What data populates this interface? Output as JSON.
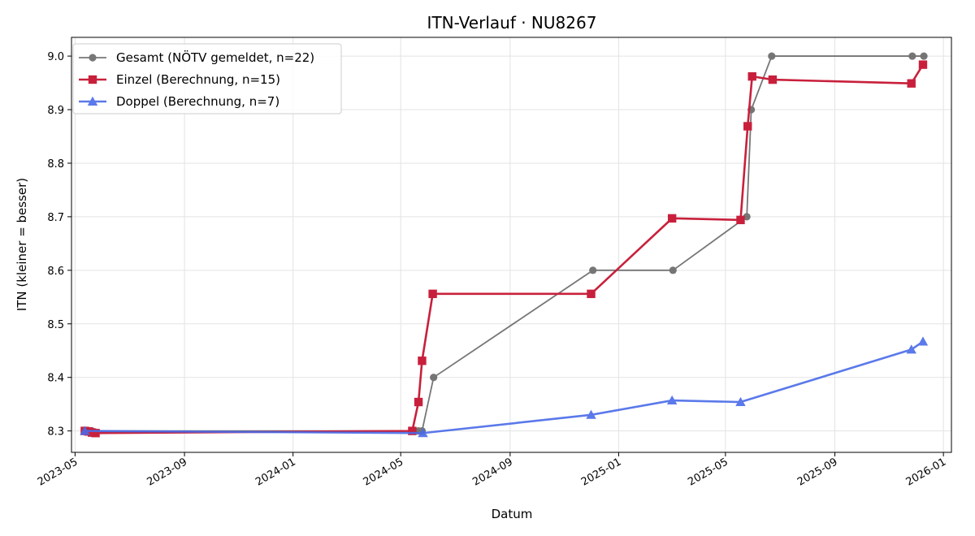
{
  "chart_data": {
    "type": "line",
    "title": "ITN-Verlauf · NU8267",
    "xlabel": "Datum",
    "ylabel": "ITN  (kleiner = besser)",
    "x_axis": "date",
    "xlim": [
      "2023-04-27",
      "2026-01-10"
    ],
    "ylim": [
      8.26,
      9.035
    ],
    "x_ticks": [
      "2023-05-01",
      "2023-09-01",
      "2024-01-01",
      "2024-05-01",
      "2024-09-01",
      "2025-01-01",
      "2025-05-01",
      "2025-09-01",
      "2026-01-01"
    ],
    "x_tick_labels": [
      "2023-05",
      "2023-09",
      "2024-01",
      "2024-05",
      "2024-09",
      "2025-01",
      "2025-05",
      "2025-09",
      "2026-01"
    ],
    "y_ticks": [
      8.3,
      8.4,
      8.5,
      8.6,
      8.7,
      8.8,
      8.9,
      9.0
    ],
    "y_tick_labels": [
      "8.3",
      "8.4",
      "8.5",
      "8.6",
      "8.7",
      "8.8",
      "8.9",
      "9.0"
    ],
    "grid": true,
    "legend_position": "top-left",
    "series": [
      {
        "name": "Gesamt (NÖTV gemeldet, n=22)",
        "color": "#555555",
        "marker": "circle",
        "points": [
          [
            "2023-05-12",
            8.3
          ],
          [
            "2023-05-14",
            8.3
          ],
          [
            "2023-05-16",
            8.3
          ],
          [
            "2023-05-18",
            8.3
          ],
          [
            "2023-05-20",
            8.3
          ],
          [
            "2024-05-17",
            8.3
          ],
          [
            "2024-05-21",
            8.3
          ],
          [
            "2024-05-25",
            8.3
          ],
          [
            "2024-06-07",
            8.4
          ],
          [
            "2024-12-03",
            8.6
          ],
          [
            "2025-03-03",
            8.6
          ],
          [
            "2025-05-25",
            8.7
          ],
          [
            "2025-05-30",
            8.9
          ],
          [
            "2025-06-22",
            9.0
          ],
          [
            "2025-11-27",
            9.0
          ],
          [
            "2025-12-10",
            9.0
          ]
        ]
      },
      {
        "name": "Einzel (Berechnung, n=15)",
        "color": "#c8203c",
        "marker": "square",
        "points": [
          [
            "2023-05-12",
            8.3
          ],
          [
            "2023-05-16",
            8.299
          ],
          [
            "2023-05-20",
            8.297
          ],
          [
            "2023-05-24",
            8.296
          ],
          [
            "2024-05-14",
            8.3
          ],
          [
            "2024-05-21",
            8.354
          ],
          [
            "2024-05-25",
            8.431
          ],
          [
            "2024-06-06",
            8.556
          ],
          [
            "2024-12-01",
            8.556
          ],
          [
            "2025-03-02",
            8.697
          ],
          [
            "2025-05-18",
            8.694
          ],
          [
            "2025-05-26",
            8.869
          ],
          [
            "2025-05-31",
            8.962
          ],
          [
            "2025-06-23",
            8.956
          ],
          [
            "2025-11-26",
            8.949
          ],
          [
            "2025-12-09",
            8.984
          ]
        ]
      },
      {
        "name": "Doppel (Berechnung, n=7)",
        "color": "#4a6be8",
        "marker": "triangle",
        "points": [
          [
            "2023-05-12",
            8.3
          ],
          [
            "2024-05-26",
            8.296
          ],
          [
            "2024-12-01",
            8.33
          ],
          [
            "2025-03-02",
            8.357
          ],
          [
            "2025-05-18",
            8.354
          ],
          [
            "2025-11-26",
            8.452
          ],
          [
            "2025-12-09",
            8.467
          ]
        ]
      }
    ]
  }
}
